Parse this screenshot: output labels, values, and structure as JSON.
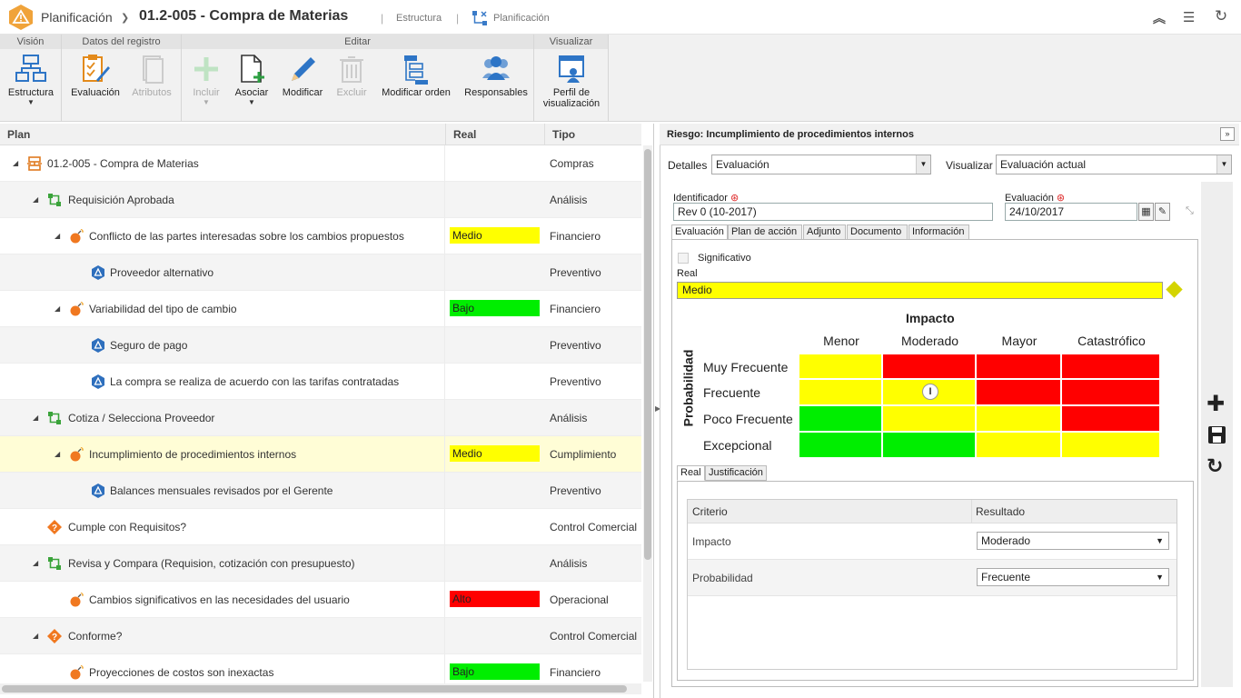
{
  "app": {
    "module": "Planificación",
    "title": "01.2-005  - Compra de Materias",
    "link_structure": "Estructura",
    "link_planning": "Planificación"
  },
  "ribbon": {
    "groups": {
      "vision": "Visión",
      "record": "Datos del registro",
      "edit": "Editar",
      "view": "Visualizar"
    },
    "buttons": {
      "structure": "Estructura",
      "evaluation": "Evaluación",
      "attributes": "Atributos",
      "include": "Incluir",
      "associate": "Asociar",
      "modify": "Modificar",
      "exclude": "Excluir",
      "modify_order": "Modificar orden",
      "responsibles": "Responsables",
      "profile": "Perfil de visualización"
    }
  },
  "grid": {
    "headers": {
      "plan": "Plan",
      "real": "Real",
      "type": "Tipo"
    },
    "rows": [
      {
        "label": "01.2-005 - Compra de Materias",
        "real": "",
        "type": "Compras",
        "icon": "process-icon",
        "level": 0,
        "expand": true
      },
      {
        "label": "Requisición Aprobada",
        "real": "",
        "type": "Análisis",
        "icon": "activity-icon",
        "level": 1,
        "expand": true
      },
      {
        "label": "Conflicto de las partes interesadas sobre los cambios propuestos",
        "real": "Medio",
        "type": "Financiero",
        "icon": "risk-bomb-icon",
        "level": 2,
        "expand": true
      },
      {
        "label": "Proveedor alternativo",
        "real": "",
        "type": "Preventivo",
        "icon": "control-shield-icon",
        "level": 3,
        "expand": false
      },
      {
        "label": "Variabilidad del tipo de cambio",
        "real": "Bajo",
        "type": "Financiero",
        "icon": "risk-bomb-icon",
        "level": 2,
        "expand": true
      },
      {
        "label": "Seguro de pago",
        "real": "",
        "type": "Preventivo",
        "icon": "control-shield-icon",
        "level": 3,
        "expand": false
      },
      {
        "label": "La compra se realiza de acuerdo con las tarifas contratadas",
        "real": "",
        "type": "Preventivo",
        "icon": "control-shield-icon",
        "level": 3,
        "expand": false
      },
      {
        "label": "Cotiza / Selecciona Proveedor",
        "real": "",
        "type": "Análisis",
        "icon": "activity-icon",
        "level": 1,
        "expand": true
      },
      {
        "label": "Incumplimiento de procedimientos internos",
        "real": "Medio",
        "type": "Cumplimiento",
        "icon": "risk-bomb-icon",
        "level": 2,
        "expand": true
      },
      {
        "label": "Balances mensuales revisados por el Gerente",
        "real": "",
        "type": "Preventivo",
        "icon": "control-shield-icon",
        "level": 3,
        "expand": false
      },
      {
        "label": "Cumple con Requisitos?",
        "real": "",
        "type": "Control Comercial",
        "icon": "decision-icon",
        "level": 1,
        "expand": false
      },
      {
        "label": "Revisa y Compara (Requision, cotización con presupuesto)",
        "real": "",
        "type": "Análisis",
        "icon": "activity-icon",
        "level": 1,
        "expand": true
      },
      {
        "label": "Cambios significativos en las necesidades del usuario",
        "real": "Alto",
        "type": "Operacional",
        "icon": "risk-bomb-icon",
        "level": 2,
        "expand": false
      },
      {
        "label": "Conforme?",
        "real": "",
        "type": "Control Comercial",
        "icon": "decision-icon",
        "level": 1,
        "expand": true
      },
      {
        "label": "Proyecciones de costos son inexactas",
        "real": "Bajo",
        "type": "Financiero",
        "icon": "risk-bomb-icon",
        "level": 2,
        "expand": false
      }
    ]
  },
  "colors": {
    "Medio": "#ffff00",
    "Bajo": "#00ee00",
    "Alto": "#ff0000",
    "accent": "#f0a33a"
  },
  "panel": {
    "title": "Riesgo: Incumplimiento de procedimientos internos",
    "details_label": "Detalles",
    "details_value": "Evaluación",
    "visualize_label": "Visualizar",
    "visualize_value": "Evaluación actual",
    "identifier_label": "Identificador",
    "identifier_value": "Rev 0 (10-2017)",
    "evaluation_label": "Evaluación",
    "evaluation_value": "24/10/2017",
    "tabs": [
      "Evaluación",
      "Plan de acción",
      "Adjunto",
      "Documento",
      "Información"
    ],
    "significant_label": "Significativo",
    "real_label": "Real",
    "real_value": "Medio",
    "matrix": {
      "impact_title": "Impacto",
      "prob_title": "Probabilidad",
      "impact_cols": [
        "Menor",
        "Moderado",
        "Mayor",
        "Catastrófico"
      ],
      "prob_rows": [
        "Muy Frecuente",
        "Frecuente",
        "Poco Frecuente",
        "Excepcional"
      ],
      "cells": [
        [
          "yellow",
          "red",
          "red",
          "red"
        ],
        [
          "yellow",
          "yellow",
          "red",
          "red"
        ],
        [
          "green",
          "yellow",
          "yellow",
          "red"
        ],
        [
          "green",
          "green",
          "yellow",
          "yellow"
        ]
      ],
      "marker": "I"
    },
    "subtabs": [
      "Real",
      "Justificación"
    ],
    "criteria": {
      "headers": {
        "criterion": "Criterio",
        "result": "Resultado"
      },
      "rows": [
        {
          "criterion": "Impacto",
          "result": "Moderado"
        },
        {
          "criterion": "Probabilidad",
          "result": "Frecuente"
        }
      ]
    }
  }
}
